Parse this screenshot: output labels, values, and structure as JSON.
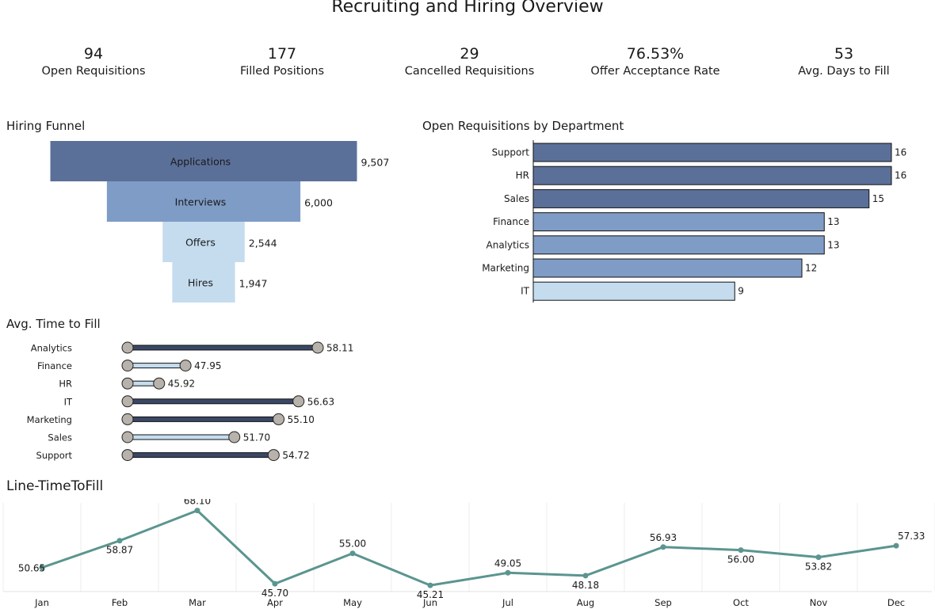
{
  "dashboard": {
    "title": "Recruiting and Hiring Overview"
  },
  "kpis": [
    {
      "value": "94",
      "label": "Open Requisitions"
    },
    {
      "value": "177",
      "label": "Filled Positions"
    },
    {
      "value": "29",
      "label": "Cancelled Requisitions"
    },
    {
      "value": "76.53%",
      "label": "Offer Acceptance Rate"
    },
    {
      "value": "53",
      "label": "Avg. Days to Fill"
    }
  ],
  "sections": {
    "funnel": "Hiring Funnel",
    "dept": "Open Requisitions by Department",
    "ttf": "Avg. Time to Fill",
    "line": "Line-TimeToFill"
  },
  "colors": {
    "dark": "#5b7099",
    "mid": "#7f9cc6",
    "light": "#c5dcef",
    "line": "#5b9590",
    "dot": "#b8b2ac"
  },
  "chart_data": [
    {
      "type": "bar",
      "subtype": "funnel",
      "title": "Hiring Funnel",
      "categories": [
        "Applications",
        "Interviews",
        "Offers",
        "Hires"
      ],
      "values": [
        9507,
        6000,
        2544,
        1947
      ],
      "value_labels": [
        "9,507",
        "6,000",
        "2,544",
        "1,947"
      ]
    },
    {
      "type": "bar",
      "orientation": "horizontal",
      "title": "Open Requisitions by Department",
      "categories": [
        "Support",
        "HR",
        "Sales",
        "Finance",
        "Analytics",
        "Marketing",
        "IT"
      ],
      "values": [
        16,
        16,
        15,
        13,
        13,
        12,
        9
      ],
      "xlim": [
        0,
        16
      ]
    },
    {
      "type": "bar",
      "subtype": "dumbbell",
      "title": "Avg. Time to Fill",
      "categories": [
        "Analytics",
        "Finance",
        "HR",
        "IT",
        "Marketing",
        "Sales",
        "Support"
      ],
      "values": [
        58.11,
        47.95,
        45.92,
        56.63,
        55.1,
        51.7,
        54.72
      ],
      "value_labels": [
        "58.11",
        "47.95",
        "45.92",
        "56.63",
        "55.10",
        "51.70",
        "54.72"
      ]
    },
    {
      "type": "line",
      "title": "Line-TimeToFill",
      "categories": [
        "Jan",
        "Feb",
        "Mar",
        "Apr",
        "May",
        "Jun",
        "Jul",
        "Aug",
        "Sep",
        "Oct",
        "Nov",
        "Dec"
      ],
      "values": [
        50.65,
        58.87,
        68.1,
        45.7,
        55.0,
        45.21,
        49.05,
        48.18,
        56.93,
        56.0,
        53.82,
        57.33
      ],
      "value_labels": [
        "50.65",
        "58.87",
        "68.10",
        "45.70",
        "55.00",
        "45.21",
        "49.05",
        "48.18",
        "56.93",
        "56.00",
        "53.82",
        "57.33"
      ],
      "ylim": [
        45,
        68.5
      ],
      "grid": "vertical"
    }
  ]
}
